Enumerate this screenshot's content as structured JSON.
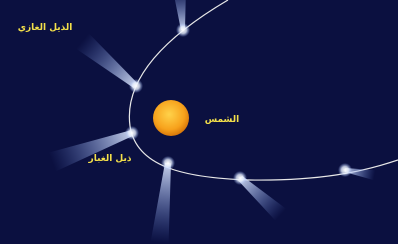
{
  "labels": {
    "gas_tail": "الذيل الغازي",
    "sun": "الشمس",
    "dust_tail": "ذيل الغبار"
  }
}
